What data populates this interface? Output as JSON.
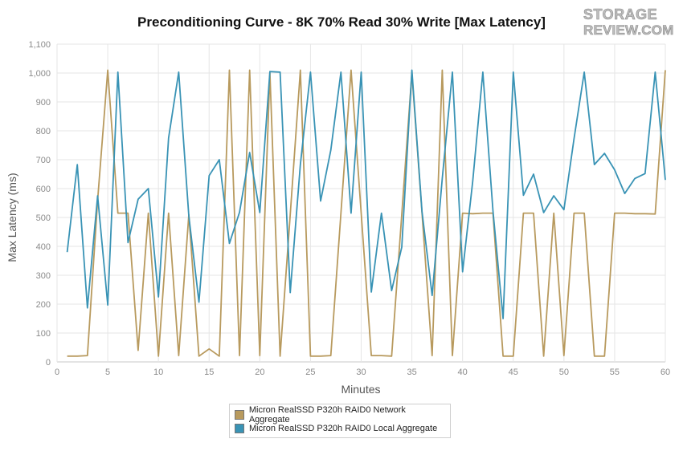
{
  "chart_data": {
    "type": "line",
    "title": "Preconditioning Curve - 8K 70% Read 30% Write [Max Latency]",
    "xlabel": "Minutes",
    "ylabel": "Max Latency (ms)",
    "xlim": [
      0,
      60
    ],
    "ylim": [
      0,
      1100
    ],
    "xticks": [
      "0",
      "5",
      "10",
      "15",
      "20",
      "25",
      "30",
      "35",
      "40",
      "45",
      "50",
      "55",
      "60"
    ],
    "yticks": [
      "0",
      "100",
      "200",
      "300",
      "400",
      "500",
      "600",
      "700",
      "800",
      "900",
      "1,000",
      "1,100"
    ],
    "grid": true,
    "legend_position": "bottom",
    "x": [
      1,
      2,
      3,
      4,
      5,
      6,
      7,
      8,
      9,
      10,
      11,
      12,
      13,
      14,
      15,
      16,
      17,
      18,
      19,
      20,
      21,
      22,
      23,
      24,
      25,
      26,
      27,
      28,
      29,
      30,
      31,
      32,
      33,
      34,
      35,
      36,
      37,
      38,
      39,
      40,
      41,
      42,
      43,
      44,
      45,
      46,
      47,
      48,
      49,
      50,
      51,
      52,
      53,
      54,
      55,
      56,
      57,
      58,
      59,
      60
    ],
    "series": [
      {
        "name": "Micron RealSSD P320h RAID0 Network Aggregate",
        "color": "#b89a5e",
        "values": [
          20,
          20,
          22,
          560,
          1010,
          515,
          515,
          40,
          515,
          20,
          515,
          22,
          510,
          20,
          45,
          20,
          1010,
          22,
          1010,
          22,
          1000,
          20,
          510,
          1010,
          20,
          20,
          22,
          515,
          1010,
          515,
          22,
          22,
          20,
          510,
          1000,
          515,
          22,
          1010,
          22,
          515,
          513,
          515,
          515,
          20,
          20,
          515,
          515,
          20,
          515,
          22,
          515,
          515,
          20,
          20,
          515,
          515,
          513,
          513,
          512,
          1010
        ]
      },
      {
        "name": "Micron RealSSD P320h RAID0 Local Aggregate",
        "color": "#3993b5",
        "values": [
          380,
          683,
          187,
          575,
          197,
          1003,
          413,
          563,
          600,
          225,
          775,
          1003,
          505,
          207,
          645,
          700,
          410,
          518,
          725,
          517,
          1005,
          1003,
          240,
          683,
          1003,
          557,
          733,
          1003,
          515,
          1003,
          242,
          515,
          247,
          397,
          1010,
          520,
          230,
          635,
          1003,
          312,
          625,
          1003,
          523,
          150,
          1003,
          577,
          650,
          517,
          575,
          527,
          773,
          1003,
          683,
          722,
          665,
          583,
          635,
          652,
          1003,
          630
        ]
      }
    ]
  },
  "logo": {
    "line1": "STORAGE",
    "line2": "REVIEW.COM"
  }
}
